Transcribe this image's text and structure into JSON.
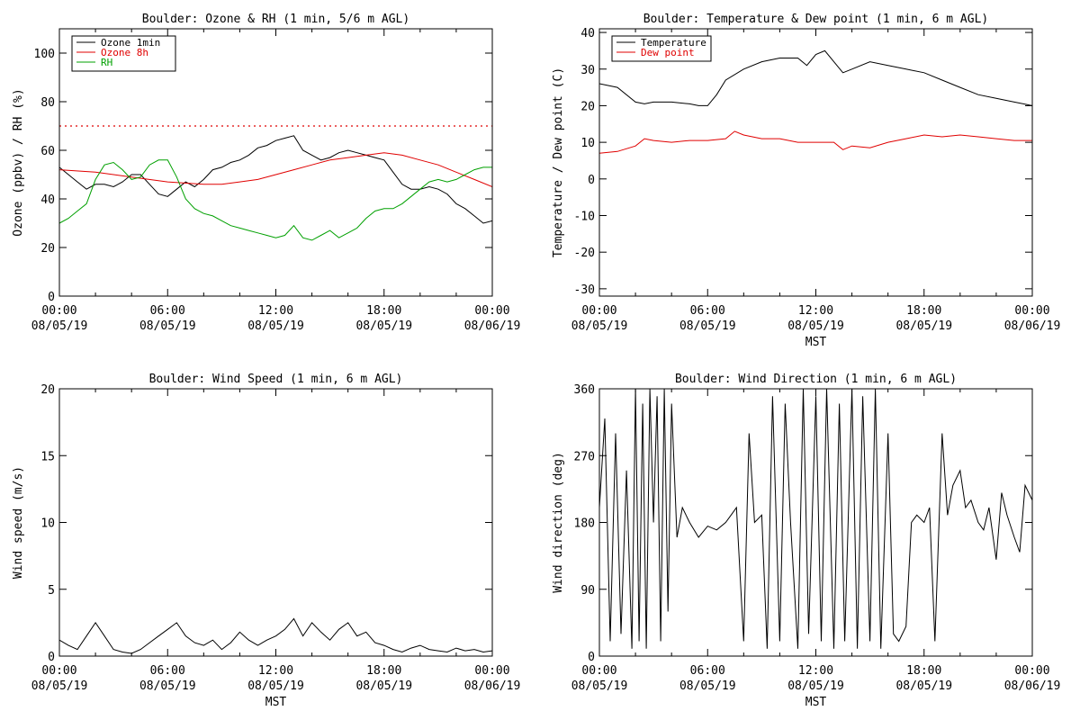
{
  "colors": {
    "black": "#000000",
    "red": "#e00000",
    "green": "#00a000"
  },
  "chart_data": [
    {
      "type": "line",
      "title": "Boulder: Ozone & RH (1 min, 5/6 m AGL)",
      "ylabel": "Ozone (ppbv) / RH (%)",
      "xlabel": "",
      "ylim": [
        0,
        110
      ],
      "yticks": [
        0,
        20,
        40,
        60,
        80,
        100
      ],
      "xlim": [
        0,
        24
      ],
      "xticks": [
        0,
        6,
        12,
        18,
        24
      ],
      "xtick_labels": [
        [
          "00:00",
          "08/05/19"
        ],
        [
          "06:00",
          "08/05/19"
        ],
        [
          "12:00",
          "08/05/19"
        ],
        [
          "18:00",
          "08/05/19"
        ],
        [
          "00:00",
          "08/06/19"
        ]
      ],
      "reference_line": {
        "y": 70,
        "color": "#e00000",
        "style": "dotted"
      },
      "legend": "top-left",
      "series": [
        {
          "name": "Ozone 1min",
          "color": "#000000",
          "x": [
            0,
            0.5,
            1,
            1.5,
            2,
            2.5,
            3,
            3.5,
            4,
            4.5,
            5,
            5.5,
            6,
            6.5,
            7,
            7.5,
            8,
            8.5,
            9,
            9.5,
            10,
            10.5,
            11,
            11.5,
            12,
            12.5,
            13,
            13.5,
            14,
            14.5,
            15,
            15.5,
            16,
            16.5,
            17,
            17.5,
            18,
            18.5,
            19,
            19.5,
            20,
            20.5,
            21,
            21.5,
            22,
            22.5,
            23,
            23.5,
            24
          ],
          "y": [
            53,
            50,
            47,
            44,
            46,
            46,
            45,
            47,
            50,
            50,
            46,
            42,
            41,
            44,
            47,
            45,
            48,
            52,
            53,
            55,
            56,
            58,
            61,
            62,
            64,
            65,
            66,
            60,
            58,
            56,
            57,
            59,
            60,
            59,
            58,
            57,
            56,
            51,
            46,
            44,
            44,
            45,
            44,
            42,
            38,
            36,
            33,
            30,
            31
          ]
        },
        {
          "name": "Ozone 8h",
          "color": "#e00000",
          "x": [
            0,
            2,
            4,
            6,
            8,
            9,
            10,
            11,
            12,
            13,
            14,
            15,
            16,
            17,
            18,
            19,
            20,
            21,
            22,
            23,
            24
          ],
          "y": [
            52,
            51,
            49,
            47,
            46,
            46,
            47,
            48,
            50,
            52,
            54,
            56,
            57,
            58,
            59,
            58,
            56,
            54,
            51,
            48,
            45
          ]
        },
        {
          "name": "RH",
          "color": "#00a000",
          "x": [
            0,
            0.5,
            1,
            1.5,
            2,
            2.5,
            3,
            3.5,
            4,
            4.5,
            5,
            5.5,
            6,
            6.5,
            7,
            7.5,
            8,
            8.5,
            9,
            9.5,
            10,
            10.5,
            11,
            11.5,
            12,
            12.5,
            13,
            13.5,
            14,
            14.5,
            15,
            15.5,
            16,
            16.5,
            17,
            17.5,
            18,
            18.5,
            19,
            19.5,
            20,
            20.5,
            21,
            21.5,
            22,
            22.5,
            23,
            23.5,
            24
          ],
          "y": [
            30,
            32,
            35,
            38,
            48,
            54,
            55,
            52,
            48,
            49,
            54,
            56,
            56,
            49,
            40,
            36,
            34,
            33,
            31,
            29,
            28,
            27,
            26,
            25,
            24,
            25,
            29,
            24,
            23,
            25,
            27,
            24,
            26,
            28,
            32,
            35,
            36,
            36,
            38,
            41,
            44,
            47,
            48,
            47,
            48,
            50,
            52,
            53,
            53
          ]
        }
      ]
    },
    {
      "type": "line",
      "title": "Boulder: Temperature & Dew point (1 min, 6 m AGL)",
      "ylabel": "Temperature / Dew point (C)",
      "xlabel": "MST",
      "ylim": [
        -32,
        41
      ],
      "yticks": [
        -30,
        -20,
        -10,
        0,
        10,
        20,
        30,
        40
      ],
      "xlim": [
        0,
        24
      ],
      "xticks": [
        0,
        6,
        12,
        18,
        24
      ],
      "xtick_labels": [
        [
          "00:00",
          "08/05/19"
        ],
        [
          "06:00",
          "08/05/19"
        ],
        [
          "12:00",
          "08/05/19"
        ],
        [
          "18:00",
          "08/05/19"
        ],
        [
          "00:00",
          "08/06/19"
        ]
      ],
      "legend": "top-left",
      "series": [
        {
          "name": "Temperature",
          "color": "#000000",
          "x": [
            0,
            1,
            2,
            2.5,
            3,
            4,
            5,
            5.5,
            6,
            6.5,
            7,
            8,
            9,
            10,
            11,
            11.5,
            12,
            12.5,
            13,
            13.5,
            14,
            15,
            16,
            17,
            18,
            19,
            20,
            21,
            22,
            23,
            24
          ],
          "y": [
            26,
            25,
            21,
            20.5,
            21,
            21,
            20.5,
            20,
            20,
            23,
            27,
            30,
            32,
            33,
            33,
            31,
            34,
            35,
            32,
            29,
            30,
            32,
            31,
            30,
            29,
            27,
            25,
            23,
            22,
            21,
            20
          ]
        },
        {
          "name": "Dew point",
          "color": "#e00000",
          "x": [
            0,
            1,
            2,
            2.5,
            3,
            4,
            5,
            6,
            7,
            7.5,
            8,
            9,
            10,
            11,
            12,
            13,
            13.5,
            14,
            15,
            16,
            17,
            18,
            19,
            20,
            21,
            22,
            23,
            24
          ],
          "y": [
            7,
            7.5,
            9,
            11,
            10.5,
            10,
            10.5,
            10.5,
            11,
            13,
            12,
            11,
            11,
            10,
            10,
            10,
            8,
            9,
            8.5,
            10,
            11,
            12,
            11.5,
            12,
            11.5,
            11,
            10.5,
            10.5
          ]
        }
      ]
    },
    {
      "type": "line",
      "title": "Boulder: Wind Speed (1 min, 6 m AGL)",
      "ylabel": "Wind speed (m/s)",
      "xlabel": "MST",
      "ylim": [
        0,
        20
      ],
      "yticks": [
        0,
        5,
        10,
        15,
        20
      ],
      "xlim": [
        0,
        24
      ],
      "xticks": [
        0,
        6,
        12,
        18,
        24
      ],
      "xtick_labels": [
        [
          "00:00",
          "08/05/19"
        ],
        [
          "06:00",
          "08/05/19"
        ],
        [
          "12:00",
          "08/05/19"
        ],
        [
          "18:00",
          "08/05/19"
        ],
        [
          "00:00",
          "08/06/19"
        ]
      ],
      "series": [
        {
          "color": "#000000",
          "x": [
            0,
            0.5,
            1,
            1.5,
            2,
            2.5,
            3,
            3.5,
            4,
            4.5,
            5,
            5.5,
            6,
            6.5,
            7,
            7.5,
            8,
            8.5,
            9,
            9.5,
            10,
            10.5,
            11,
            11.5,
            12,
            12.5,
            13,
            13.5,
            14,
            14.5,
            15,
            15.5,
            16,
            16.5,
            17,
            17.5,
            18,
            18.5,
            19,
            19.5,
            20,
            20.5,
            21,
            21.5,
            22,
            22.5,
            23,
            23.5,
            24
          ],
          "y": [
            1.2,
            0.8,
            0.5,
            1.5,
            2.5,
            1.5,
            0.5,
            0.3,
            0.2,
            0.5,
            1.0,
            1.5,
            2.0,
            2.5,
            1.5,
            1.0,
            0.8,
            1.2,
            0.5,
            1.0,
            1.8,
            1.2,
            0.8,
            1.2,
            1.5,
            2.0,
            2.8,
            1.5,
            2.5,
            1.8,
            1.2,
            2.0,
            2.5,
            1.5,
            1.8,
            1.0,
            0.8,
            0.5,
            0.3,
            0.6,
            0.8,
            0.5,
            0.4,
            0.3,
            0.6,
            0.4,
            0.5,
            0.3,
            0.4
          ]
        }
      ]
    },
    {
      "type": "line",
      "title": "Boulder: Wind Direction (1 min, 6 m AGL)",
      "ylabel": "Wind direction (deg)",
      "xlabel": "MST",
      "ylim": [
        0,
        360
      ],
      "yticks": [
        0,
        90,
        180,
        270,
        360
      ],
      "xlim": [
        0,
        24
      ],
      "xticks": [
        0,
        6,
        12,
        18,
        24
      ],
      "xtick_labels": [
        [
          "00:00",
          "08/05/19"
        ],
        [
          "06:00",
          "08/05/19"
        ],
        [
          "12:00",
          "08/05/19"
        ],
        [
          "18:00",
          "08/05/19"
        ],
        [
          "00:00",
          "08/06/19"
        ]
      ],
      "series": [
        {
          "color": "#000000",
          "x": [
            0,
            0.3,
            0.6,
            0.9,
            1.2,
            1.5,
            1.8,
            2.0,
            2.2,
            2.4,
            2.6,
            2.8,
            3.0,
            3.2,
            3.4,
            3.6,
            3.8,
            4.0,
            4.3,
            4.6,
            5.0,
            5.5,
            6.0,
            6.5,
            7.0,
            7.3,
            7.6,
            8.0,
            8.3,
            8.6,
            9.0,
            9.3,
            9.6,
            10.0,
            10.3,
            10.6,
            11.0,
            11.3,
            11.6,
            12.0,
            12.3,
            12.6,
            13.0,
            13.3,
            13.6,
            14.0,
            14.3,
            14.6,
            15.0,
            15.3,
            15.6,
            16.0,
            16.3,
            16.6,
            17.0,
            17.3,
            17.6,
            18.0,
            18.3,
            18.6,
            19.0,
            19.3,
            19.6,
            20.0,
            20.3,
            20.6,
            21.0,
            21.3,
            21.6,
            22.0,
            22.3,
            22.6,
            23.0,
            23.3,
            23.6,
            24.0
          ],
          "y": [
            200,
            320,
            20,
            300,
            30,
            250,
            10,
            360,
            20,
            340,
            10,
            360,
            180,
            350,
            20,
            360,
            60,
            340,
            160,
            200,
            180,
            160,
            175,
            170,
            180,
            190,
            200,
            20,
            300,
            180,
            190,
            10,
            350,
            20,
            340,
            180,
            10,
            360,
            30,
            350,
            20,
            360,
            10,
            340,
            20,
            360,
            10,
            350,
            20,
            360,
            10,
            300,
            30,
            20,
            40,
            180,
            190,
            180,
            200,
            20,
            300,
            190,
            230,
            250,
            200,
            210,
            180,
            170,
            200,
            130,
            220,
            190,
            160,
            140,
            230,
            210
          ]
        }
      ]
    }
  ]
}
